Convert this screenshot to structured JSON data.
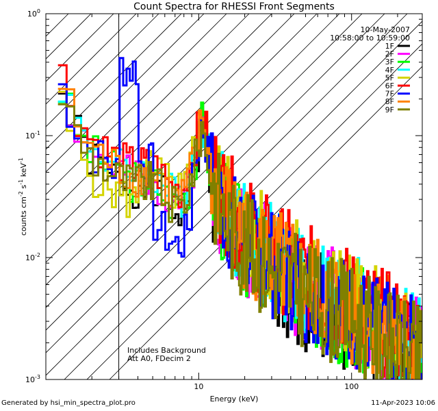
{
  "chart_data": {
    "type": "line",
    "title": "Count Spectra for RHESSI Front Segments",
    "xlabel": "Energy (keV)",
    "ylabel_parts": [
      "counts cm",
      "-2",
      " s",
      "-1",
      " keV",
      "-1"
    ],
    "xscale": "log",
    "yscale": "log",
    "xlim": [
      1.0,
      290.0
    ],
    "ylim": [
      0.001,
      1.0
    ],
    "x_tick_labels": [
      {
        "value": 10,
        "label": "10"
      },
      {
        "value": 100,
        "label": "100"
      }
    ],
    "y_tick_labels": [
      {
        "value": 1,
        "base": "10",
        "exp": "0"
      },
      {
        "value": 0.1,
        "base": "10",
        "exp": "-1"
      },
      {
        "value": 0.01,
        "base": "10",
        "exp": "-2"
      },
      {
        "value": 0.001,
        "base": "10",
        "exp": "-3"
      }
    ],
    "hatched_region": [
      1.0,
      3.0
    ],
    "legend_header": [
      "10-May-2007",
      "10:58:00 to 10:59:00"
    ],
    "annotations": [
      "Includes Background",
      "Att A0, FDecim 2"
    ],
    "series": [
      {
        "name": "1F",
        "color": "#000000",
        "scale": 0.85,
        "seed": 1
      },
      {
        "name": "2F",
        "color": "#ff00ff",
        "scale": 1.0,
        "seed": 2
      },
      {
        "name": "3F",
        "color": "#00ff00",
        "scale": 0.95,
        "seed": 3
      },
      {
        "name": "4F",
        "color": "#00ffff",
        "scale": 1.1,
        "seed": 4
      },
      {
        "name": "5F",
        "color": "#d4d400",
        "scale": 1.2,
        "seed": 5
      },
      {
        "name": "6F",
        "color": "#ff0000",
        "scale": 1.25,
        "seed": 6
      },
      {
        "name": "7F",
        "color": "#0000ff",
        "scale": 1.0,
        "seed": 7
      },
      {
        "name": "8F",
        "color": "#ff8000",
        "scale": 1.05,
        "seed": 8
      },
      {
        "name": "9F",
        "color": "#808000",
        "scale": 0.9,
        "seed": 9
      }
    ],
    "base_spectrum": [
      [
        1.2,
        0.32
      ],
      [
        1.4,
        0.18
      ],
      [
        1.6,
        0.12
      ],
      [
        1.8,
        0.09
      ],
      [
        2.0,
        0.075
      ],
      [
        2.5,
        0.06
      ],
      [
        3.0,
        0.05
      ],
      [
        3.5,
        0.045
      ],
      [
        4.0,
        0.045
      ],
      [
        5.0,
        0.045
      ],
      [
        6.0,
        0.035
      ],
      [
        7.0,
        0.028
      ],
      [
        8.0,
        0.03
      ],
      [
        9.0,
        0.05
      ],
      [
        10.0,
        0.09
      ],
      [
        10.5,
        0.14
      ],
      [
        11.0,
        0.1
      ],
      [
        12.0,
        0.05
      ],
      [
        14.0,
        0.028
      ],
      [
        17.0,
        0.018
      ],
      [
        20.0,
        0.014
      ],
      [
        25.0,
        0.011
      ],
      [
        30.0,
        0.009
      ],
      [
        40.0,
        0.007
      ],
      [
        50.0,
        0.0055
      ],
      [
        70.0,
        0.0045
      ],
      [
        100.0,
        0.0035
      ],
      [
        150.0,
        0.0025
      ],
      [
        200.0,
        0.002
      ],
      [
        290.0,
        0.0016
      ]
    ]
  },
  "footer": {
    "left": "Generated by hsi_min_spectra_plot.pro",
    "right": "11-Apr-2023 10:06"
  }
}
